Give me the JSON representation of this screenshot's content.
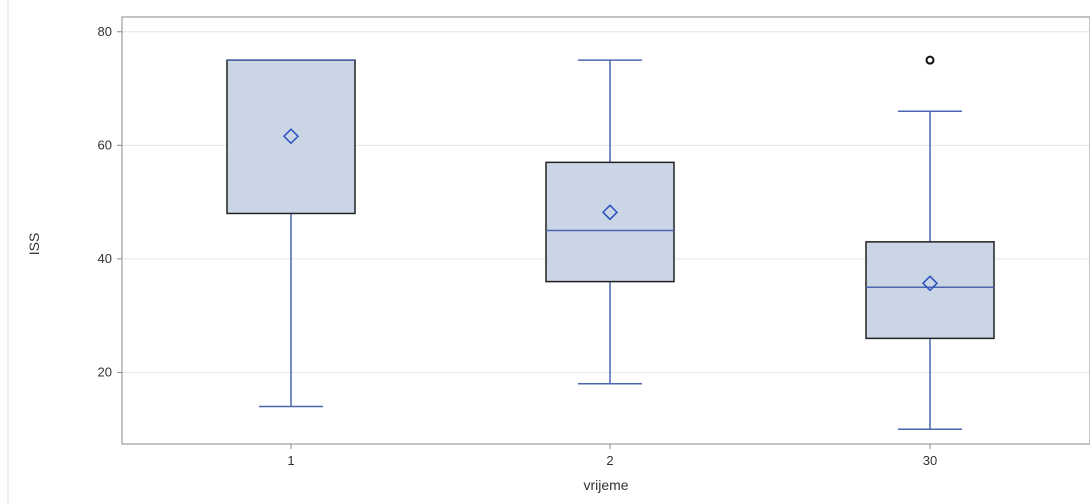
{
  "chart_data": {
    "type": "boxplot",
    "xlabel": "vrijeme",
    "ylabel": "ISS",
    "ylim": [
      7.4,
      82.6
    ],
    "yticks": [
      20,
      40,
      60,
      80
    ],
    "grid": true,
    "categories": [
      "1",
      "2",
      "30"
    ],
    "boxes": [
      {
        "category": "1",
        "whisker_low": 14,
        "q1": 48,
        "median": 75,
        "q3": 75,
        "whisker_high": 75,
        "mean": 61.6,
        "outliers": []
      },
      {
        "category": "2",
        "whisker_low": 18,
        "q1": 36,
        "median": 45,
        "q3": 57,
        "whisker_high": 75,
        "mean": 48.2,
        "outliers": []
      },
      {
        "category": "30",
        "whisker_low": 10,
        "q1": 26,
        "median": 35,
        "q3": 43,
        "whisker_high": 66,
        "mean": 35.7,
        "outliers": [
          75
        ]
      }
    ],
    "colors": {
      "box_fill": "#cad5e5",
      "box_border": "#222222",
      "whisker": "#4a66b0",
      "mean_marker": "#2b50c0",
      "outlier": "#111111",
      "grid": "#e6e6e6",
      "frame": "#888888"
    }
  }
}
